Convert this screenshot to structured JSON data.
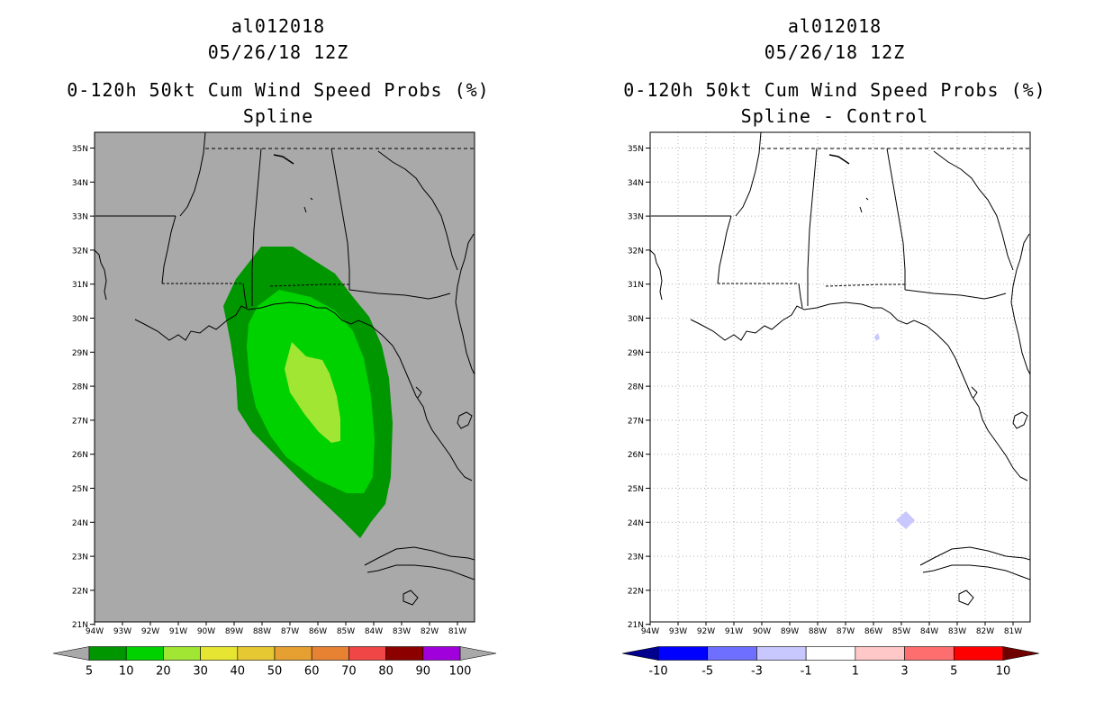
{
  "left_panel": {
    "storm_id": "al012018",
    "datetime": "05/26/18 12Z",
    "product": "0-120h 50kt Cum Wind Speed Probs (%)",
    "subtitle": "Spline",
    "background_color": "#a9a9a9",
    "colorbar": {
      "ticks": [
        "5",
        "10",
        "20",
        "30",
        "40",
        "50",
        "60",
        "70",
        "80",
        "90",
        "100"
      ],
      "colors": [
        "#009600",
        "#00d200",
        "#a0e632",
        "#e6e632",
        "#e6c832",
        "#e6a032",
        "#e68232",
        "#f04646",
        "#8c0000",
        "#a000dc"
      ]
    }
  },
  "right_panel": {
    "storm_id": "al012018",
    "datetime": "05/26/18 12Z",
    "product": "0-120h 50kt Cum Wind Speed Probs (%)",
    "subtitle": "Spline - Control",
    "background_color": "#ffffff",
    "colorbar": {
      "ticks": [
        "-10",
        "-5",
        "-3",
        "-1",
        "1",
        "3",
        "5",
        "10"
      ],
      "colors": [
        "#0000ff",
        "#6e6eff",
        "#c8c8ff",
        "#ffffff",
        "#ffc8c8",
        "#ff6e6e",
        "#ff0000"
      ]
    }
  },
  "axes": {
    "lat_labels": [
      "35N",
      "34N",
      "33N",
      "32N",
      "31N",
      "30N",
      "29N",
      "28N",
      "27N",
      "26N",
      "25N",
      "24N",
      "23N",
      "22N",
      "21N"
    ],
    "lon_labels": [
      "94W",
      "93W",
      "92W",
      "91W",
      "90W",
      "89W",
      "88W",
      "87W",
      "86W",
      "85W",
      "84W",
      "83W",
      "82W",
      "81W"
    ]
  }
}
